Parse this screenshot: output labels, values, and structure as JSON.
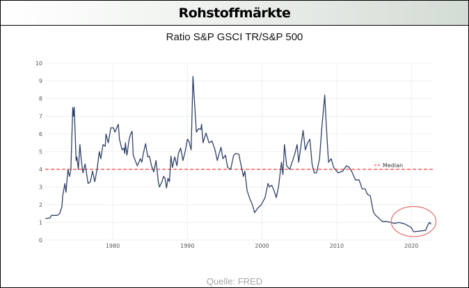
{
  "header": {
    "title": "Rohstoffmärkte"
  },
  "source": "Quelle: FRED",
  "colors": {
    "line": "#2e3f66",
    "median": "#ff3b3b",
    "annotation": "#e07b76",
    "grid": "#efefef"
  },
  "chart_data": {
    "type": "line",
    "title": "Ratio S&P GSCI TR/S&P 500",
    "xlabel": "",
    "ylabel": "",
    "xlim": [
      1971,
      2022.7
    ],
    "ylim": [
      0,
      10
    ],
    "yticks": [
      "0",
      "1",
      "2",
      "3",
      "4",
      "5",
      "6",
      "7",
      "8",
      "9",
      "10"
    ],
    "xticks": [
      "1980",
      "1990",
      "2000",
      "2010",
      "2020"
    ],
    "grid": true,
    "legend": {
      "position": "right",
      "entries": [
        "Median"
      ]
    },
    "median": 4,
    "series": [
      {
        "name": "Ratio",
        "points": [
          [
            1971.0,
            1.22
          ],
          [
            1971.6,
            1.25
          ],
          [
            1971.8,
            1.4
          ],
          [
            1972.6,
            1.4
          ],
          [
            1972.9,
            1.5
          ],
          [
            1973.2,
            1.9
          ],
          [
            1973.3,
            2.5
          ],
          [
            1973.6,
            3.2
          ],
          [
            1973.75,
            2.7
          ],
          [
            1974.0,
            4.0
          ],
          [
            1974.2,
            3.6
          ],
          [
            1974.4,
            4.0
          ],
          [
            1974.5,
            5.5
          ],
          [
            1974.65,
            7.5
          ],
          [
            1974.75,
            7.0
          ],
          [
            1974.85,
            7.5
          ],
          [
            1975.1,
            4.5
          ],
          [
            1975.2,
            4.7
          ],
          [
            1975.4,
            4.0
          ],
          [
            1975.6,
            5.4
          ],
          [
            1975.8,
            4.5
          ],
          [
            1976.0,
            3.8
          ],
          [
            1976.3,
            4.3
          ],
          [
            1976.7,
            3.2
          ],
          [
            1977.0,
            3.3
          ],
          [
            1977.3,
            3.9
          ],
          [
            1977.6,
            3.3
          ],
          [
            1977.9,
            4.0
          ],
          [
            1978.2,
            5.0
          ],
          [
            1978.4,
            4.6
          ],
          [
            1978.7,
            5.4
          ],
          [
            1979.0,
            5.3
          ],
          [
            1979.1,
            6.0
          ],
          [
            1979.4,
            5.5
          ],
          [
            1979.75,
            6.35
          ],
          [
            1980.1,
            6.35
          ],
          [
            1980.3,
            6.1
          ],
          [
            1980.5,
            6.3
          ],
          [
            1980.75,
            6.55
          ],
          [
            1980.9,
            5.7
          ],
          [
            1981.25,
            5.1
          ],
          [
            1981.5,
            5.2
          ],
          [
            1981.6,
            4.9
          ],
          [
            1981.7,
            5.5
          ],
          [
            1981.9,
            4.8
          ],
          [
            1982.2,
            5.7
          ],
          [
            1982.4,
            6.0
          ],
          [
            1982.6,
            6.15
          ],
          [
            1982.75,
            4.8
          ],
          [
            1983.1,
            4.4
          ],
          [
            1983.3,
            4.2
          ],
          [
            1983.7,
            4.6
          ],
          [
            1983.9,
            4.4
          ],
          [
            1984.1,
            4.9
          ],
          [
            1984.4,
            5.45
          ],
          [
            1984.7,
            4.7
          ],
          [
            1984.9,
            4.75
          ],
          [
            1985.2,
            4.2
          ],
          [
            1985.5,
            3.85
          ],
          [
            1985.8,
            4.5
          ],
          [
            1986.1,
            3.3
          ],
          [
            1986.25,
            3.0
          ],
          [
            1986.6,
            3.3
          ],
          [
            1986.8,
            3.6
          ],
          [
            1987.0,
            3.5
          ],
          [
            1987.2,
            2.95
          ],
          [
            1987.4,
            3.5
          ],
          [
            1987.6,
            3.3
          ],
          [
            1987.8,
            4.75
          ],
          [
            1988.0,
            4.1
          ],
          [
            1988.3,
            4.7
          ],
          [
            1988.6,
            4.2
          ],
          [
            1988.8,
            4.9
          ],
          [
            1989.1,
            5.2
          ],
          [
            1989.4,
            4.5
          ],
          [
            1989.7,
            5.0
          ],
          [
            1990.0,
            5.7
          ],
          [
            1990.2,
            5.6
          ],
          [
            1990.5,
            5.1
          ],
          [
            1990.75,
            9.25
          ],
          [
            1991.0,
            7.5
          ],
          [
            1991.2,
            6.1
          ],
          [
            1991.5,
            6.3
          ],
          [
            1991.8,
            6.25
          ],
          [
            1991.9,
            6.55
          ],
          [
            1992.1,
            5.5
          ],
          [
            1992.5,
            6.05
          ],
          [
            1992.9,
            5.5
          ],
          [
            1993.3,
            5.6
          ],
          [
            1993.7,
            5.1
          ],
          [
            1994.0,
            4.5
          ],
          [
            1994.5,
            5.25
          ],
          [
            1994.75,
            4.6
          ],
          [
            1995.1,
            4.8
          ],
          [
            1995.4,
            4.1
          ],
          [
            1995.8,
            4.0
          ],
          [
            1996.2,
            4.8
          ],
          [
            1996.5,
            4.9
          ],
          [
            1996.9,
            4.85
          ],
          [
            1997.1,
            4.4
          ],
          [
            1997.5,
            3.6
          ],
          [
            1997.7,
            3.9
          ],
          [
            1998.0,
            2.8
          ],
          [
            1998.4,
            2.3
          ],
          [
            1998.7,
            2.0
          ],
          [
            1999.0,
            1.55
          ],
          [
            1999.4,
            1.8
          ],
          [
            1999.9,
            2.0
          ],
          [
            2000.4,
            2.4
          ],
          [
            2000.8,
            3.2
          ],
          [
            2001.0,
            3.0
          ],
          [
            2001.3,
            3.1
          ],
          [
            2001.6,
            2.8
          ],
          [
            2001.9,
            2.4
          ],
          [
            2002.2,
            3.0
          ],
          [
            2002.6,
            4.4
          ],
          [
            2002.8,
            3.7
          ],
          [
            2003.0,
            5.4
          ],
          [
            2003.3,
            4.2
          ],
          [
            2003.7,
            4.0
          ],
          [
            2004.1,
            4.5
          ],
          [
            2004.4,
            4.9
          ],
          [
            2004.7,
            5.4
          ],
          [
            2004.9,
            4.4
          ],
          [
            2005.2,
            5.3
          ],
          [
            2005.5,
            6.2
          ],
          [
            2005.8,
            5.1
          ],
          [
            2006.1,
            5.5
          ],
          [
            2006.4,
            5.7
          ],
          [
            2006.7,
            4.3
          ],
          [
            2007.0,
            3.8
          ],
          [
            2007.3,
            3.8
          ],
          [
            2007.7,
            4.6
          ],
          [
            2008.0,
            6.3
          ],
          [
            2008.4,
            8.2
          ],
          [
            2008.6,
            6.5
          ],
          [
            2008.9,
            4.4
          ],
          [
            2009.25,
            4.6
          ],
          [
            2009.6,
            4.1
          ],
          [
            2010.2,
            3.8
          ],
          [
            2010.8,
            3.9
          ],
          [
            2011.3,
            4.2
          ],
          [
            2011.7,
            4.1
          ],
          [
            2012.1,
            3.8
          ],
          [
            2012.5,
            3.4
          ],
          [
            2013.0,
            3.4
          ],
          [
            2013.4,
            2.9
          ],
          [
            2013.8,
            2.9
          ],
          [
            2014.1,
            2.6
          ],
          [
            2014.5,
            2.5
          ],
          [
            2014.9,
            1.6
          ],
          [
            2015.2,
            1.4
          ],
          [
            2015.5,
            1.3
          ],
          [
            2016.1,
            1.05
          ],
          [
            2016.7,
            1.05
          ],
          [
            2017.7,
            0.95
          ],
          [
            2018.4,
            1.0
          ],
          [
            2019.2,
            0.9
          ],
          [
            2020.0,
            0.7
          ],
          [
            2020.3,
            0.47
          ],
          [
            2020.9,
            0.5
          ],
          [
            2021.9,
            0.55
          ],
          [
            2022.2,
            0.85
          ],
          [
            2022.4,
            1.0
          ],
          [
            2022.65,
            0.9
          ]
        ]
      }
    ],
    "annotation": {
      "type": "circle",
      "label": "",
      "x_range": [
        2017.3,
        2023.3
      ],
      "y_range": [
        0.2,
        1.9
      ]
    }
  }
}
